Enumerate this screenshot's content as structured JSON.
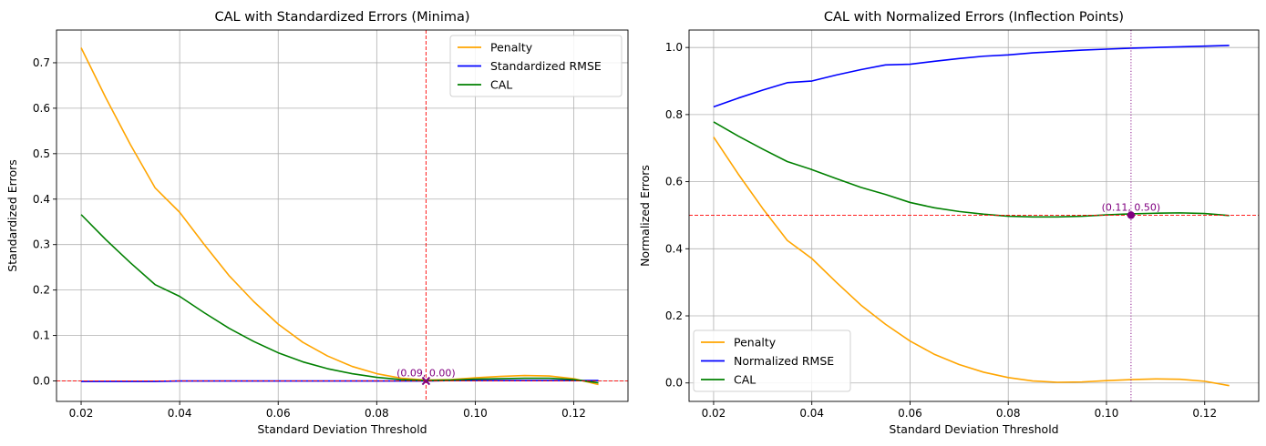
{
  "chart_data": [
    {
      "type": "line",
      "title": "CAL with Standardized Errors (Minima)",
      "xlabel": "Standard Deviation Threshold",
      "ylabel": "Standardized Errors",
      "xlim": [
        0.015,
        0.131
      ],
      "ylim": [
        -0.045,
        0.772
      ],
      "xticks": [
        0.02,
        0.04,
        0.06,
        0.08,
        0.1,
        0.12
      ],
      "xtick_labels": [
        "0.02",
        "0.04",
        "0.06",
        "0.08",
        "0.10",
        "0.12"
      ],
      "yticks": [
        0.0,
        0.1,
        0.2,
        0.3,
        0.4,
        0.5,
        0.6,
        0.7
      ],
      "ytick_labels": [
        "0.0",
        "0.1",
        "0.2",
        "0.3",
        "0.4",
        "0.5",
        "0.6",
        "0.7"
      ],
      "grid": true,
      "legend_position": "upper right",
      "x": [
        0.02,
        0.025,
        0.03,
        0.035,
        0.04,
        0.045,
        0.05,
        0.055,
        0.06,
        0.065,
        0.07,
        0.075,
        0.08,
        0.085,
        0.09,
        0.095,
        0.1,
        0.105,
        0.11,
        0.115,
        0.12,
        0.125
      ],
      "series": [
        {
          "name": "Penalty",
          "color": "#ffa500",
          "values": [
            0.733,
            0.623,
            0.52,
            0.425,
            0.371,
            0.3,
            0.232,
            0.175,
            0.125,
            0.085,
            0.055,
            0.032,
            0.016,
            0.006,
            0.002,
            0.003,
            0.007,
            0.01,
            0.012,
            0.011,
            0.005,
            -0.008
          ]
        },
        {
          "name": "Standardized RMSE",
          "color": "#0000ff",
          "values": [
            -0.001,
            -0.001,
            -0.001,
            -0.001,
            0.0,
            0.0,
            0.0,
            0.0,
            0.0,
            0.0,
            0.0,
            0.0,
            0.0,
            0.0,
            0.0,
            0.001,
            0.001,
            0.001,
            0.001,
            0.001,
            0.001,
            0.001
          ]
        },
        {
          "name": "CAL",
          "color": "#008000",
          "values": [
            0.366,
            0.311,
            0.26,
            0.212,
            0.186,
            0.15,
            0.116,
            0.087,
            0.062,
            0.042,
            0.027,
            0.016,
            0.008,
            0.003,
            0.001,
            0.002,
            0.004,
            0.005,
            0.006,
            0.006,
            0.003,
            -0.004
          ]
        }
      ],
      "reference_lines": {
        "vertical_x": 0.09,
        "horizontal_y": 0.0,
        "color": "#ff0000",
        "style": "dashed"
      },
      "marker": {
        "x": 0.09,
        "y": 0.0,
        "shape": "x",
        "color": "#800080",
        "label": "(0.09, 0.00)"
      }
    },
    {
      "type": "line",
      "title": "CAL with Normalized Errors (Inflection Points)",
      "xlabel": "Standard Deviation Threshold",
      "ylabel": "Normalized Errors",
      "xlim": [
        0.015,
        0.131
      ],
      "ylim": [
        -0.055,
        1.052
      ],
      "xticks": [
        0.02,
        0.04,
        0.06,
        0.08,
        0.1,
        0.12
      ],
      "xtick_labels": [
        "0.02",
        "0.04",
        "0.06",
        "0.08",
        "0.10",
        "0.12"
      ],
      "yticks": [
        0.0,
        0.2,
        0.4,
        0.6,
        0.8,
        1.0
      ],
      "ytick_labels": [
        "0.0",
        "0.2",
        "0.4",
        "0.6",
        "0.8",
        "1.0"
      ],
      "grid": true,
      "legend_position": "lower left",
      "x": [
        0.02,
        0.025,
        0.03,
        0.035,
        0.04,
        0.045,
        0.05,
        0.055,
        0.06,
        0.065,
        0.07,
        0.075,
        0.08,
        0.085,
        0.09,
        0.095,
        0.1,
        0.105,
        0.11,
        0.115,
        0.12,
        0.125
      ],
      "series": [
        {
          "name": "Penalty",
          "color": "#ffa500",
          "values": [
            0.733,
            0.623,
            0.52,
            0.425,
            0.371,
            0.3,
            0.232,
            0.175,
            0.125,
            0.085,
            0.055,
            0.032,
            0.016,
            0.006,
            0.002,
            0.003,
            0.007,
            0.01,
            0.012,
            0.011,
            0.005,
            -0.008
          ]
        },
        {
          "name": "Normalized RMSE",
          "color": "#0000ff",
          "values": [
            0.823,
            0.849,
            0.873,
            0.895,
            0.9,
            0.918,
            0.934,
            0.948,
            0.95,
            0.959,
            0.967,
            0.974,
            0.978,
            0.984,
            0.988,
            0.992,
            0.995,
            0.998,
            1.0,
            1.002,
            1.004,
            1.006
          ]
        },
        {
          "name": "CAL",
          "color": "#008000",
          "values": [
            0.778,
            0.736,
            0.697,
            0.66,
            0.636,
            0.609,
            0.583,
            0.562,
            0.538,
            0.522,
            0.511,
            0.503,
            0.497,
            0.495,
            0.495,
            0.497,
            0.501,
            0.504,
            0.506,
            0.507,
            0.505,
            0.499
          ]
        }
      ],
      "reference_lines": {
        "vertical_x": 0.105,
        "horizontal_y": 0.5,
        "vertical_color": "#800080",
        "vertical_style": "dotted",
        "horizontal_color": "#ff0000",
        "horizontal_style": "dashed"
      },
      "marker": {
        "x": 0.105,
        "y": 0.5,
        "shape": "circle",
        "color": "#800080",
        "label": "(0.11, 0.50)"
      }
    }
  ]
}
